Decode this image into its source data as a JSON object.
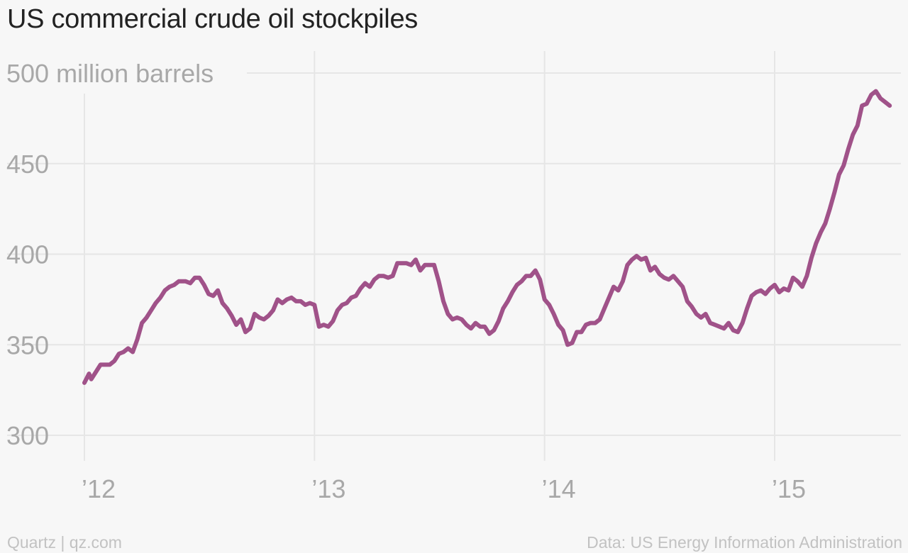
{
  "title": "US commercial crude oil stockpiles",
  "footer": {
    "credit": "Quartz | qz.com",
    "source": "Data: US Energy Information Administration"
  },
  "colors": {
    "line": "#a05289",
    "grid": "#e6e6e6",
    "tick": "#a8a8a8",
    "background": "#f7f7f7"
  },
  "chart_data": {
    "type": "line",
    "title": "US commercial crude oil stockpiles",
    "ylabel": "million barrels",
    "ylim": [
      300,
      500
    ],
    "yticks": [
      {
        "value": 500,
        "label": "500 million barrels"
      },
      {
        "value": 450,
        "label": "450"
      },
      {
        "value": 400,
        "label": "400"
      },
      {
        "value": 350,
        "label": "350"
      },
      {
        "value": 300,
        "label": "300"
      }
    ],
    "xticks": [
      {
        "value": 2012,
        "label": "’12"
      },
      {
        "value": 2013,
        "label": "’13"
      },
      {
        "value": 2014,
        "label": "’14"
      },
      {
        "value": 2015,
        "label": "’15"
      }
    ],
    "grid": true,
    "series": [
      {
        "values": [
          [
            2012.0,
            329
          ],
          [
            2012.02,
            334
          ],
          [
            2012.03,
            331
          ],
          [
            2012.05,
            335
          ],
          [
            2012.07,
            339
          ],
          [
            2012.09,
            339
          ],
          [
            2012.11,
            339
          ],
          [
            2012.13,
            341
          ],
          [
            2012.15,
            345
          ],
          [
            2012.17,
            346
          ],
          [
            2012.19,
            348
          ],
          [
            2012.21,
            346
          ],
          [
            2012.23,
            353
          ],
          [
            2012.25,
            362
          ],
          [
            2012.27,
            365
          ],
          [
            2012.29,
            369
          ],
          [
            2012.31,
            373
          ],
          [
            2012.33,
            376
          ],
          [
            2012.35,
            380
          ],
          [
            2012.37,
            382
          ],
          [
            2012.39,
            383
          ],
          [
            2012.41,
            385
          ],
          [
            2012.44,
            385
          ],
          [
            2012.46,
            384
          ],
          [
            2012.48,
            387
          ],
          [
            2012.5,
            387
          ],
          [
            2012.52,
            383
          ],
          [
            2012.54,
            378
          ],
          [
            2012.56,
            377
          ],
          [
            2012.58,
            380
          ],
          [
            2012.6,
            373
          ],
          [
            2012.62,
            370
          ],
          [
            2012.64,
            366
          ],
          [
            2012.66,
            361
          ],
          [
            2012.68,
            364
          ],
          [
            2012.7,
            357
          ],
          [
            2012.72,
            359
          ],
          [
            2012.74,
            367
          ],
          [
            2012.76,
            365
          ],
          [
            2012.78,
            364
          ],
          [
            2012.8,
            366
          ],
          [
            2012.82,
            369
          ],
          [
            2012.84,
            375
          ],
          [
            2012.86,
            373
          ],
          [
            2012.88,
            375
          ],
          [
            2012.9,
            376
          ],
          [
            2012.92,
            374
          ],
          [
            2012.94,
            374
          ],
          [
            2012.96,
            372
          ],
          [
            2012.98,
            373
          ],
          [
            2013.0,
            372
          ],
          [
            2013.02,
            360
          ],
          [
            2013.04,
            361
          ],
          [
            2013.06,
            360
          ],
          [
            2013.08,
            363
          ],
          [
            2013.1,
            369
          ],
          [
            2013.12,
            372
          ],
          [
            2013.14,
            373
          ],
          [
            2013.16,
            376
          ],
          [
            2013.18,
            377
          ],
          [
            2013.2,
            381
          ],
          [
            2013.22,
            384
          ],
          [
            2013.24,
            382
          ],
          [
            2013.26,
            386
          ],
          [
            2013.28,
            388
          ],
          [
            2013.3,
            388
          ],
          [
            2013.32,
            387
          ],
          [
            2013.34,
            388
          ],
          [
            2013.36,
            395
          ],
          [
            2013.38,
            395
          ],
          [
            2013.4,
            395
          ],
          [
            2013.42,
            394
          ],
          [
            2013.44,
            397
          ],
          [
            2013.46,
            391
          ],
          [
            2013.48,
            394
          ],
          [
            2013.5,
            394
          ],
          [
            2013.52,
            394
          ],
          [
            2013.54,
            385
          ],
          [
            2013.56,
            374
          ],
          [
            2013.58,
            367
          ],
          [
            2013.6,
            364
          ],
          [
            2013.62,
            365
          ],
          [
            2013.64,
            364
          ],
          [
            2013.66,
            361
          ],
          [
            2013.68,
            359
          ],
          [
            2013.7,
            362
          ],
          [
            2013.72,
            360
          ],
          [
            2013.74,
            360
          ],
          [
            2013.76,
            356
          ],
          [
            2013.78,
            358
          ],
          [
            2013.8,
            363
          ],
          [
            2013.82,
            370
          ],
          [
            2013.84,
            374
          ],
          [
            2013.86,
            379
          ],
          [
            2013.88,
            383
          ],
          [
            2013.9,
            385
          ],
          [
            2013.92,
            388
          ],
          [
            2013.94,
            388
          ],
          [
            2013.96,
            391
          ],
          [
            2013.98,
            386
          ],
          [
            2014.0,
            375
          ],
          [
            2014.02,
            372
          ],
          [
            2014.04,
            367
          ],
          [
            2014.06,
            361
          ],
          [
            2014.08,
            358
          ],
          [
            2014.1,
            350
          ],
          [
            2014.12,
            351
          ],
          [
            2014.14,
            357
          ],
          [
            2014.16,
            357
          ],
          [
            2014.18,
            361
          ],
          [
            2014.2,
            362
          ],
          [
            2014.22,
            362
          ],
          [
            2014.24,
            364
          ],
          [
            2014.26,
            370
          ],
          [
            2014.28,
            376
          ],
          [
            2014.3,
            382
          ],
          [
            2014.32,
            380
          ],
          [
            2014.34,
            385
          ],
          [
            2014.36,
            394
          ],
          [
            2014.38,
            397
          ],
          [
            2014.4,
            399
          ],
          [
            2014.42,
            397
          ],
          [
            2014.44,
            398
          ],
          [
            2014.46,
            391
          ],
          [
            2014.48,
            393
          ],
          [
            2014.5,
            389
          ],
          [
            2014.52,
            387
          ],
          [
            2014.54,
            386
          ],
          [
            2014.56,
            388
          ],
          [
            2014.58,
            385
          ],
          [
            2014.6,
            382
          ],
          [
            2014.62,
            374
          ],
          [
            2014.64,
            371
          ],
          [
            2014.66,
            367
          ],
          [
            2014.68,
            365
          ],
          [
            2014.7,
            367
          ],
          [
            2014.72,
            362
          ],
          [
            2014.74,
            361
          ],
          [
            2014.76,
            360
          ],
          [
            2014.78,
            359
          ],
          [
            2014.8,
            362
          ],
          [
            2014.82,
            358
          ],
          [
            2014.84,
            357
          ],
          [
            2014.86,
            362
          ],
          [
            2014.88,
            370
          ],
          [
            2014.9,
            377
          ],
          [
            2014.92,
            379
          ],
          [
            2014.94,
            380
          ],
          [
            2014.96,
            378
          ],
          [
            2014.98,
            381
          ],
          [
            2015.0,
            383
          ],
          [
            2015.02,
            379
          ],
          [
            2015.04,
            381
          ],
          [
            2015.06,
            380
          ],
          [
            2015.08,
            387
          ],
          [
            2015.1,
            385
          ],
          [
            2015.12,
            382
          ],
          [
            2015.14,
            388
          ],
          [
            2015.16,
            398
          ],
          [
            2015.18,
            406
          ],
          [
            2015.2,
            412
          ],
          [
            2015.22,
            417
          ],
          [
            2015.24,
            425
          ],
          [
            2015.26,
            434
          ],
          [
            2015.28,
            444
          ],
          [
            2015.3,
            449
          ],
          [
            2015.32,
            458
          ],
          [
            2015.34,
            466
          ],
          [
            2015.36,
            471
          ],
          [
            2015.38,
            482
          ],
          [
            2015.4,
            483
          ],
          [
            2015.42,
            488
          ],
          [
            2015.44,
            490
          ],
          [
            2015.46,
            486
          ],
          [
            2015.48,
            484
          ],
          [
            2015.5,
            482
          ]
        ]
      }
    ]
  }
}
